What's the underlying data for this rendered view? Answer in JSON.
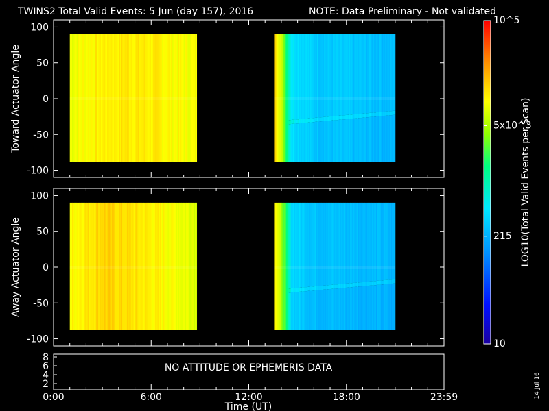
{
  "header": {
    "title": "TWINS2  Total Valid Events:  5 Jun (day 157), 2016",
    "note": "NOTE: Data Preliminary - Not validated",
    "note_color": "#ff2020"
  },
  "footer": {
    "date_stamp": "14 Jul 16"
  },
  "chart_data": [
    {
      "type": "heatmap",
      "ylabel": "Toward Actuator Angle",
      "ylim": [
        -110,
        110
      ],
      "y_ticks": [
        "100",
        "50",
        "0",
        "-50",
        "-100"
      ],
      "xlim": [
        0,
        24
      ],
      "coverage_hours": [
        [
          1.0,
          8.8
        ],
        [
          13.6,
          21.0
        ]
      ],
      "angle_range": [
        -88,
        90
      ],
      "profile": [
        {
          "x": 1.0,
          "log10": 3.95
        },
        {
          "x": 2.5,
          "log10": 4.05
        },
        {
          "x": 4.5,
          "log10": 4.1
        },
        {
          "x": 6.5,
          "log10": 4.05
        },
        {
          "x": 8.8,
          "log10": 3.95
        },
        {
          "x": 13.6,
          "log10": 4.25
        },
        {
          "x": 14.1,
          "log10": 3.6
        },
        {
          "x": 14.6,
          "log10": 2.7
        },
        {
          "x": 16.0,
          "log10": 2.5
        },
        {
          "x": 19.0,
          "log10": 2.45
        },
        {
          "x": 21.0,
          "log10": 2.4
        }
      ]
    },
    {
      "type": "heatmap",
      "ylabel": "Away Actuator Angle",
      "ylim": [
        -110,
        110
      ],
      "y_ticks": [
        "100",
        "50",
        "0",
        "-50",
        "-100"
      ],
      "xlim": [
        0,
        24
      ],
      "coverage_hours": [
        [
          1.0,
          8.8
        ],
        [
          13.6,
          21.0
        ]
      ],
      "angle_range": [
        -88,
        90
      ],
      "profile": [
        {
          "x": 1.0,
          "log10": 4.0
        },
        {
          "x": 3.0,
          "log10": 4.2
        },
        {
          "x": 5.0,
          "log10": 4.1
        },
        {
          "x": 7.0,
          "log10": 4.0
        },
        {
          "x": 8.8,
          "log10": 3.9
        },
        {
          "x": 13.6,
          "log10": 4.1
        },
        {
          "x": 14.1,
          "log10": 3.5
        },
        {
          "x": 14.6,
          "log10": 2.6
        },
        {
          "x": 16.0,
          "log10": 2.45
        },
        {
          "x": 19.0,
          "log10": 2.4
        },
        {
          "x": 21.0,
          "log10": 2.35
        }
      ]
    },
    {
      "type": "heatmap",
      "message": "NO ATTITUDE OR EPHEMERIS DATA",
      "y_ticks": [
        "8",
        "6",
        "4",
        "2"
      ],
      "x_ticks": [
        "0:00",
        "6:00",
        "12:00",
        "18:00",
        "23:59"
      ],
      "xlabel": "Time (UT)"
    }
  ],
  "colorbar": {
    "label": "LOG10(Total Valid Events per Scan)",
    "scale": "log",
    "range": [
      10,
      100000
    ],
    "ticks": [
      {
        "label": "10",
        "value": 10
      },
      {
        "label": "215",
        "value": 215
      },
      {
        "label": "5x10^3",
        "value": 5000
      },
      {
        "label": "10^5",
        "value": 100000
      }
    ]
  }
}
